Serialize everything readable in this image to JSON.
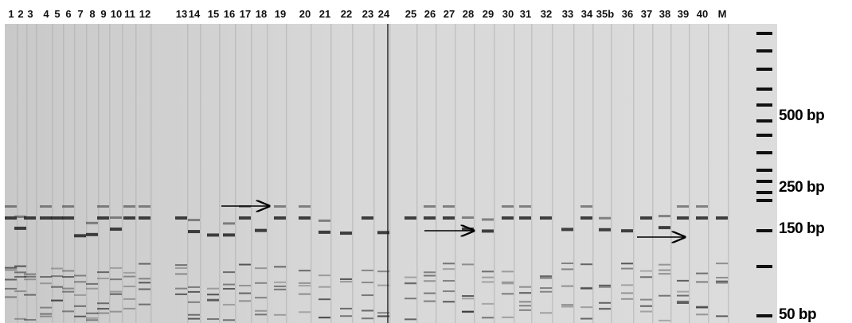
{
  "lane_labels": [
    "1",
    "2",
    "3",
    "4",
    "5",
    "6",
    "7",
    "8",
    "9",
    "10",
    "11",
    "12",
    "13",
    "14",
    "15",
    "16",
    "17",
    "18",
    "19",
    "20",
    "21",
    "22",
    "23",
    "24",
    "25",
    "26",
    "27",
    "28",
    "29",
    "30",
    "31",
    "32",
    "33",
    "34",
    "35b",
    "36",
    "37",
    "38",
    "39",
    "40",
    "M"
  ],
  "size_markers": [
    "500 bp",
    "250 bp",
    "150 bp",
    "50 bp"
  ]
}
